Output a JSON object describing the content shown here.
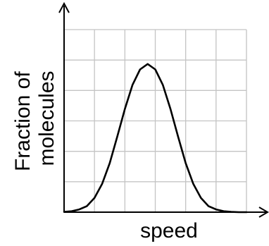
{
  "chart_data": {
    "type": "line",
    "title": "",
    "xlabel": "speed",
    "ylabel_lines": [
      "Fraction of",
      "molecules"
    ],
    "xlim": [
      0,
      6
    ],
    "ylim": [
      0,
      6
    ],
    "grid": true,
    "x_ticks_labeled": false,
    "y_ticks_labeled": false,
    "series": [
      {
        "x": [
          0,
          0.25,
          0.5,
          0.75,
          1,
          1.25,
          1.5,
          1.75,
          2,
          2.25,
          2.5,
          2.75,
          3,
          3.25,
          3.5,
          3.75,
          4,
          4.25,
          4.5,
          4.75,
          5,
          5.25,
          5.5,
          5.75,
          6
        ],
        "y": [
          0.01,
          0.03,
          0.09,
          0.2,
          0.47,
          0.93,
          1.61,
          2.48,
          3.39,
          4.18,
          4.69,
          4.87,
          4.69,
          4.18,
          3.39,
          2.48,
          1.61,
          0.93,
          0.47,
          0.2,
          0.09,
          0.03,
          0.01,
          0.0,
          0.0
        ]
      }
    ],
    "colors": {
      "grid": "#c4c4c4",
      "axis": "#000000",
      "curve": "#000000"
    }
  }
}
